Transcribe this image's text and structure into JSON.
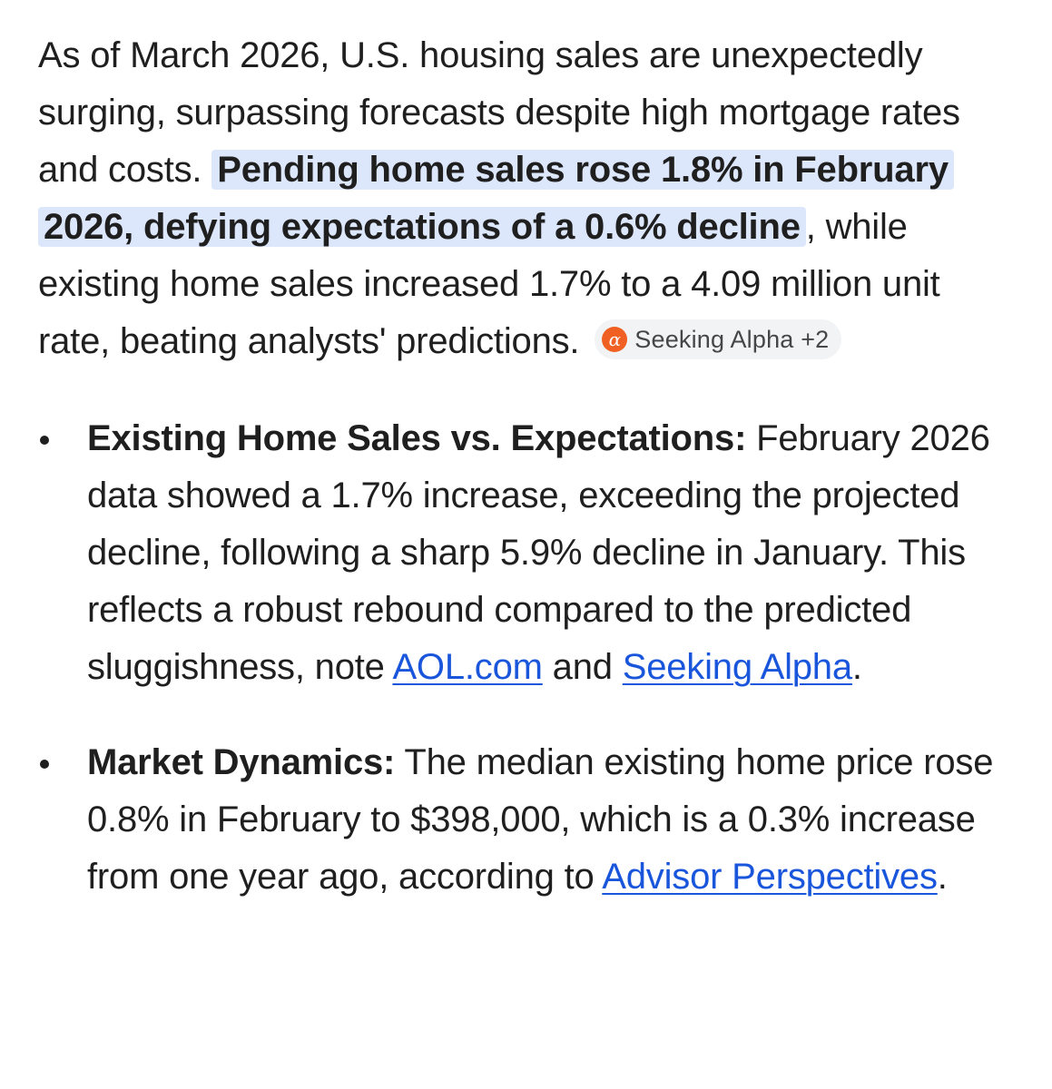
{
  "intro": {
    "lead": "As of March 2026, U.S. housing sales are unexpectedly surging, surpassing forecasts despite high mortgage rates and costs. ",
    "highlight": "Pending home sales rose 1.8% in February 2026, defying expectations of a 0.6% decline",
    "rest": ", while existing home sales increased 1.7% to a 4.09 million unit rate, beating analysts' predictions.",
    "source_chip": {
      "icon": "seeking-alpha-logo-icon",
      "logo_glyph": "α",
      "label": "Seeking Alpha +2"
    }
  },
  "bullets": [
    {
      "title": "Existing Home Sales vs. Expectations:",
      "text": " February 2026 data showed a 1.7% increase, exceeding the projected decline, following a sharp 5.9% decline in January. This reflects a robust rebound compared to the predicted sluggishness, note ",
      "link1": "AOL.com",
      "mid": " and ",
      "link2": "Seeking Alpha",
      "end": "."
    },
    {
      "title": "Market Dynamics:",
      "text": " The median existing home price rose 0.8% in February to $398,000, which is a 0.3% increase from one year ago, according to ",
      "link1": "Advisor Perspectives",
      "end": "."
    }
  ],
  "colors": {
    "highlight_bg": "#dde7fb",
    "link": "#1a56db",
    "chip_bg": "#f1f3f4",
    "logo_orange": "#f06022"
  }
}
